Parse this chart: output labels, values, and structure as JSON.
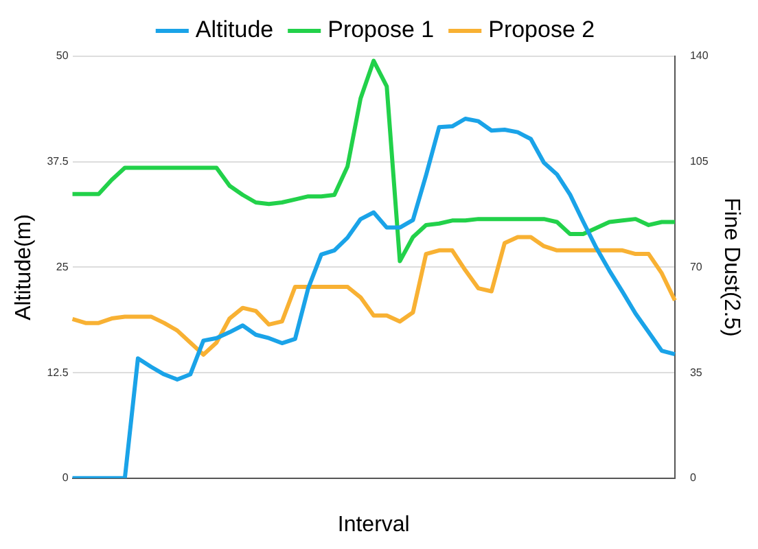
{
  "chart_data": {
    "type": "line",
    "xlabel": "Interval",
    "ylabel": "Altitude(m)",
    "y2label": "Fine Dust(2.5)",
    "categories": [
      null,
      null,
      null,
      null,
      null,
      null,
      null,
      null,
      null,
      null,
      null,
      null,
      null,
      null,
      null,
      null,
      null,
      null,
      null,
      null,
      null,
      null,
      null,
      null,
      null,
      null,
      null,
      null,
      null,
      null,
      null,
      null,
      null,
      null,
      null,
      null,
      null,
      null,
      null,
      null,
      null,
      null,
      null,
      null,
      null,
      null,
      null
    ],
    "series": [
      {
        "name": "Altitude",
        "color": "#1aa3e8",
        "values": [
          0,
          0,
          0,
          0,
          0,
          14.2,
          13.2,
          12.3,
          11.7,
          12.3,
          16.3,
          16.6,
          17.3,
          18.1,
          17,
          16.6,
          16,
          16.5,
          22.5,
          26.5,
          27,
          28.5,
          30.7,
          31.5,
          29.7,
          29.7,
          30.6,
          35.9,
          41.6,
          41.7,
          42.6,
          42.3,
          41.2,
          41.3,
          41,
          40.2,
          37.4,
          36,
          33.6,
          30.4,
          27.3,
          24.6,
          22.1,
          19.5,
          17.3,
          15.1,
          14.7
        ]
      },
      {
        "name": "Propose 1",
        "color": "#22d14a",
        "axis": "y2",
        "values": [
          94.3,
          94.3,
          94.3,
          99,
          103,
          103,
          103,
          103,
          103,
          103,
          103,
          103,
          97,
          94,
          91.5,
          91,
          91.5,
          92.5,
          93.5,
          93.5,
          94,
          103.4,
          126,
          138.5,
          130,
          72,
          80,
          84,
          84.5,
          85.5,
          85.5,
          86,
          86,
          86,
          86,
          86,
          86,
          85,
          81,
          81,
          83,
          85,
          85.5,
          86,
          84,
          85,
          85
        ]
      },
      {
        "name": "Propose 2",
        "color": "#f8b133",
        "axis": "y2",
        "values": [
          52.8,
          51.5,
          51.5,
          53,
          53.6,
          53.6,
          53.6,
          51.5,
          49,
          45,
          41,
          45,
          53,
          56.5,
          55.5,
          51,
          52,
          63.5,
          63.5,
          63.5,
          63.5,
          63.5,
          60,
          54,
          54,
          52,
          55,
          74.4,
          75.6,
          75.6,
          69,
          63,
          62,
          78,
          80,
          80,
          77,
          75.6,
          75.6,
          75.6,
          75.6,
          75.6,
          75.6,
          74.4,
          74.4,
          68,
          59
        ]
      }
    ],
    "ylim": [
      0,
      50
    ],
    "yticks": [
      0,
      12.5,
      25,
      37.5,
      50
    ],
    "y2lim": [
      0,
      140
    ],
    "y2ticks": [
      0,
      35,
      70,
      105,
      140
    ],
    "grid": "y",
    "legend": "top",
    "marker": "none",
    "line_style": "solid"
  }
}
